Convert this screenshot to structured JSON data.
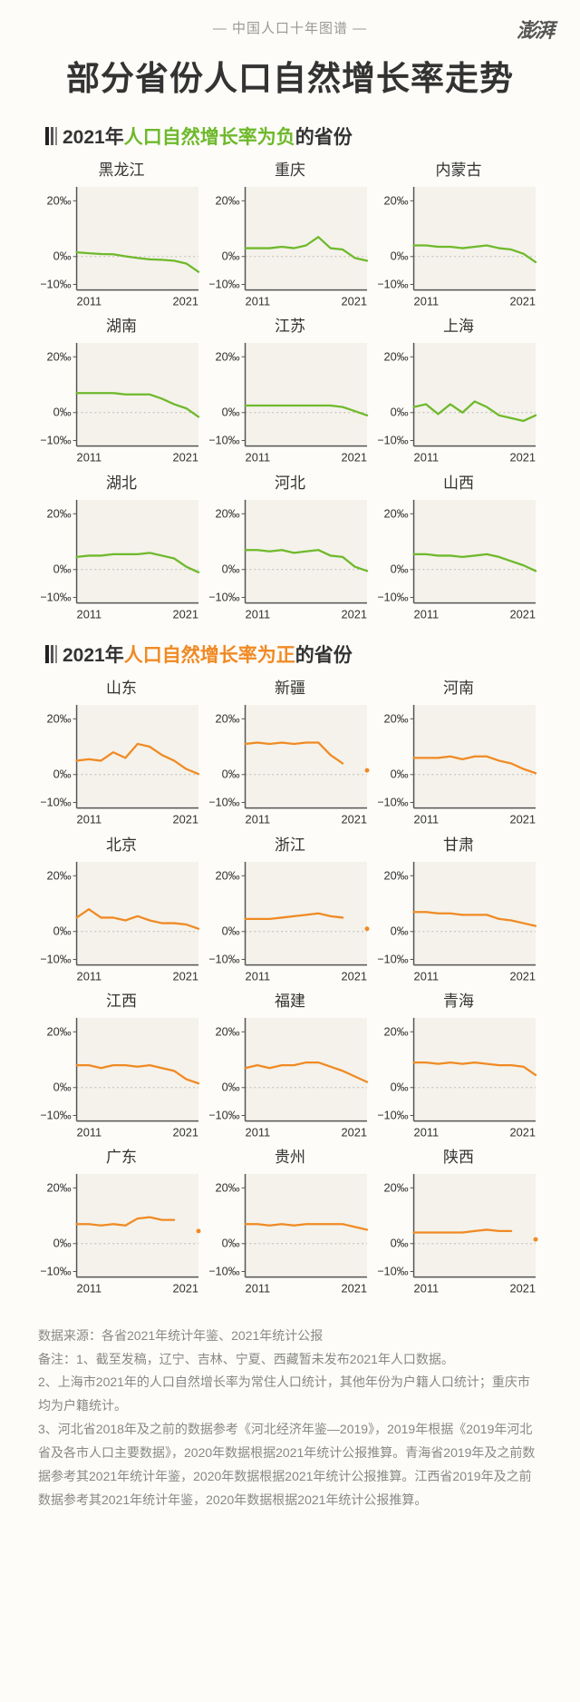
{
  "header": {
    "tagline": "— 中国人口十年图谱 —",
    "logo": "澎湃",
    "title": "部分省份人口自然增长率走势"
  },
  "axis": {
    "x_start_label": "2011",
    "x_end_label": "2021",
    "y_ticks": [
      20,
      0,
      -10
    ],
    "y_labels": [
      "20‰",
      "0‰",
      "−10‰"
    ],
    "ylim": [
      -12,
      25
    ],
    "label_fontsize": 13,
    "tick_color": "#333",
    "grid_color": "#d8d6cf",
    "zero_line_color": "#bbb",
    "plot_bg": "#f4f2ea",
    "frame_color": "#555"
  },
  "chart_geom": {
    "w": 180,
    "h": 145,
    "ml": 40,
    "mr": 4,
    "mt": 6,
    "mb": 24,
    "line_width": 2.3
  },
  "sections": [
    {
      "label_pre": "2021年",
      "highlight": "人口自然增长率为负",
      "label_post": "的省份",
      "highlight_class": "hl-neg",
      "line_color": "#6fb92c",
      "panels": [
        {
          "name": "黑龙江",
          "values": [
            1.5,
            1.2,
            0.9,
            0.8,
            0.1,
            -0.5,
            -1,
            -1.2,
            -1.5,
            -2.5,
            -5.5
          ]
        },
        {
          "name": "重庆",
          "values": [
            3,
            3,
            3,
            3.5,
            3,
            4,
            7,
            3,
            2.5,
            -0.5,
            -1.5
          ]
        },
        {
          "name": "内蒙古",
          "values": [
            4,
            4,
            3.5,
            3.5,
            3,
            3.5,
            4,
            3,
            2.5,
            1,
            -2
          ]
        },
        {
          "name": "湖南",
          "values": [
            7,
            7,
            7,
            7,
            6.5,
            6.5,
            6.5,
            5,
            3,
            1.5,
            -1.5
          ]
        },
        {
          "name": "江苏",
          "values": [
            2.5,
            2.5,
            2.5,
            2.5,
            2.5,
            2.5,
            2.5,
            2.5,
            2,
            0.5,
            -1
          ]
        },
        {
          "name": "上海",
          "values": [
            2,
            3,
            -0.5,
            3,
            0,
            4,
            2,
            -1,
            -2,
            -3,
            -1
          ]
        },
        {
          "name": "湖北",
          "values": [
            4.5,
            5,
            5,
            5.5,
            5.5,
            5.5,
            6,
            5,
            4,
            1,
            -1
          ]
        },
        {
          "name": "河北",
          "values": [
            7,
            7,
            6.5,
            7,
            6,
            6.5,
            7,
            5,
            4.5,
            1,
            -0.5
          ]
        },
        {
          "name": "山西",
          "values": [
            5.5,
            5.5,
            5,
            5,
            4.5,
            5,
            5.5,
            4.5,
            3,
            1.5,
            -0.5
          ]
        }
      ]
    },
    {
      "label_pre": "2021年",
      "highlight": "人口自然增长率为正",
      "label_post": "的省份",
      "highlight_class": "hl-pos",
      "line_color": "#f08a24",
      "panels": [
        {
          "name": "山东",
          "values": [
            5,
            5.5,
            5,
            8,
            6,
            11,
            10,
            7,
            5,
            2,
            0.2
          ]
        },
        {
          "name": "新疆",
          "values": [
            11,
            11.5,
            11,
            11.5,
            11,
            11.5,
            11.5,
            7,
            4,
            null,
            1.5
          ],
          "dot_at": 10
        },
        {
          "name": "河南",
          "values": [
            6,
            6,
            6,
            6.5,
            5.5,
            6.5,
            6.5,
            5,
            4,
            2,
            0.5
          ]
        },
        {
          "name": "北京",
          "values": [
            5,
            8,
            5,
            5,
            4,
            5.5,
            4,
            3,
            3,
            2.5,
            1
          ]
        },
        {
          "name": "浙江",
          "values": [
            4.5,
            4.5,
            4.5,
            5,
            5.5,
            6,
            6.5,
            5.5,
            5,
            null,
            1
          ],
          "dot_at": 10
        },
        {
          "name": "甘肃",
          "values": [
            7,
            7,
            6.5,
            6.5,
            6,
            6,
            6,
            4.5,
            4,
            3,
            2
          ]
        },
        {
          "name": "江西",
          "values": [
            8,
            8,
            7,
            8,
            8,
            7.5,
            8,
            7,
            6,
            3,
            1.5
          ]
        },
        {
          "name": "福建",
          "values": [
            7,
            8,
            7,
            8,
            8,
            9,
            9,
            7.5,
            6,
            4,
            2
          ]
        },
        {
          "name": "青海",
          "values": [
            9,
            9,
            8.5,
            9,
            8.5,
            9,
            8.5,
            8,
            8,
            7.5,
            4.5
          ]
        },
        {
          "name": "广东",
          "values": [
            7,
            7,
            6.5,
            7,
            6.5,
            9,
            9.5,
            8.5,
            8.5,
            null,
            4.5
          ],
          "dot_at": 10
        },
        {
          "name": "贵州",
          "values": [
            7,
            7,
            6.5,
            7,
            6.5,
            7,
            7,
            7,
            7,
            6,
            5
          ]
        },
        {
          "name": "陕西",
          "values": [
            4,
            4,
            4,
            4,
            4,
            4.5,
            5,
            4.5,
            4.5,
            null,
            1.5
          ],
          "dot_at": 10
        }
      ]
    }
  ],
  "footnotes": {
    "source": "数据来源：各省2021年统计年鉴、2021年统计公报",
    "notes": [
      "备注：1、截至发稿，辽宁、吉林、宁夏、西藏暂未发布2021年人口数据。",
      "2、上海市2021年的人口自然增长率为常住人口统计，其他年份为户籍人口统计；重庆市均为户籍统计。",
      "3、河北省2018年及之前的数据参考《河北经济年鉴—2019》，2019年根据《2019年河北省及各市人口主要数据》，2020年数据根据2021年统计公报推算。青海省2019年及之前数据参考其2021年统计年鉴，2020年数据根据2021年统计公报推算。江西省2019年及之前数据参考其2021年统计年鉴，2020年数据根据2021年统计公报推算。"
    ]
  }
}
